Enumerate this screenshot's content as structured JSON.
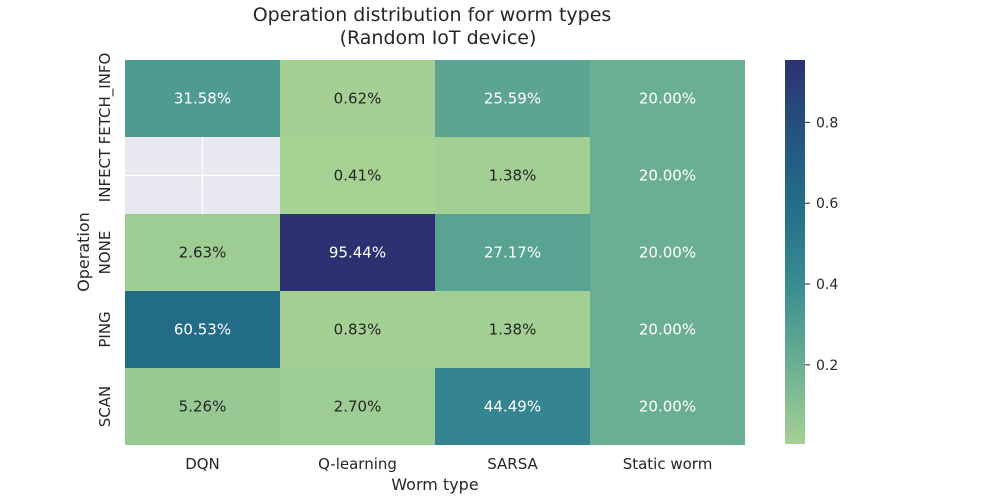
{
  "chart_data": {
    "type": "heatmap",
    "title": "Operation distribution for worm types\n(Random IoT device)",
    "title_lines": [
      "Operation distribution for worm types",
      "(Random IoT device)"
    ],
    "xlabel": "Worm type",
    "ylabel": "Operation",
    "x_categories": [
      "DQN",
      "Q-learning",
      "SARSA",
      "Static worm"
    ],
    "y_categories": [
      "FETCH_INFO",
      "INFECT",
      "NONE",
      "PING",
      "SCAN"
    ],
    "values": [
      [
        0.3158,
        0.0062,
        0.2559,
        0.2
      ],
      [
        null,
        0.0041,
        0.0138,
        0.2
      ],
      [
        0.0263,
        0.9544,
        0.2717,
        0.2
      ],
      [
        0.6053,
        0.0083,
        0.0138,
        0.2
      ],
      [
        0.0526,
        0.027,
        0.4449,
        0.2
      ]
    ],
    "annotations": [
      [
        "31.58%",
        "0.62%",
        "25.59%",
        "20.00%"
      ],
      [
        "",
        "0.41%",
        "1.38%",
        "20.00%"
      ],
      [
        "2.63%",
        "95.44%",
        "27.17%",
        "20.00%"
      ],
      [
        "60.53%",
        "0.83%",
        "1.38%",
        "20.00%"
      ],
      [
        "5.26%",
        "2.70%",
        "44.49%",
        "20.00%"
      ]
    ],
    "colorbar": {
      "range": [
        0.0041,
        0.9544
      ],
      "ticks": [
        0.2,
        0.4,
        0.6,
        0.8
      ],
      "tick_labels": [
        "0.2",
        "0.4",
        "0.6",
        "0.8"
      ],
      "colormap": "crest",
      "colors": [
        "#a5d193",
        "#6db093",
        "#3c8f91",
        "#23718a",
        "#25557f",
        "#2c3172"
      ]
    },
    "missing_color": "#e8e8f0",
    "grid": false
  }
}
